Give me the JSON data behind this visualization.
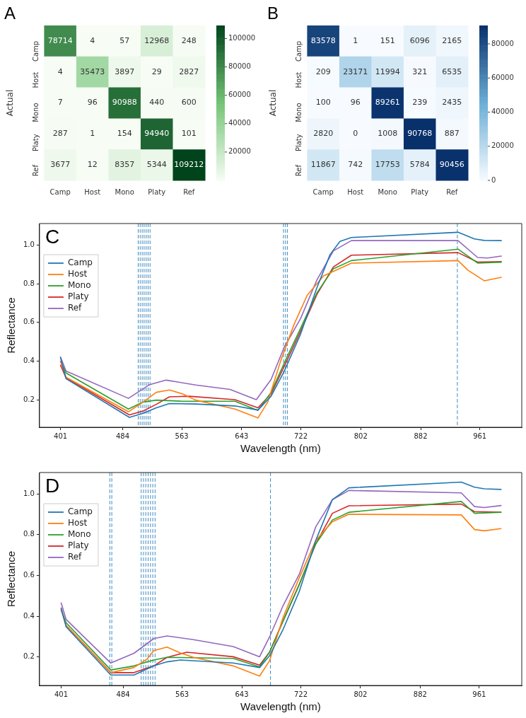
{
  "chart_data": [
    {
      "type": "heatmap",
      "title": "A",
      "ylabel": "Actual",
      "categories": [
        "Camp",
        "Host",
        "Mono",
        "Platy",
        "Ref"
      ],
      "y_categories": [
        "Camp",
        "Host",
        "Mono",
        "Platy",
        "Ref"
      ],
      "cells": [
        [
          78714,
          4,
          57,
          12968,
          248
        ],
        [
          4,
          35473,
          3897,
          29,
          2827
        ],
        [
          7,
          96,
          90988,
          440,
          600
        ],
        [
          287,
          1,
          154,
          94940,
          101
        ],
        [
          3677,
          12,
          8357,
          5344,
          109212
        ]
      ],
      "data_labels": true,
      "clim": [
        1,
        109212
      ],
      "cticks": [
        20000,
        40000,
        60000,
        80000,
        100000
      ],
      "colors": [
        "#f7fcf5",
        "#74c476",
        "#00441b"
      ]
    },
    {
      "type": "heatmap",
      "title": "B",
      "ylabel": "Actual",
      "categories": [
        "Camp",
        "Host",
        "Mono",
        "Platy",
        "Ref"
      ],
      "y_categories": [
        "Camp",
        "Host",
        "Mono",
        "Platy",
        "Ref"
      ],
      "cells": [
        [
          83578,
          1,
          151,
          6096,
          2165
        ],
        [
          209,
          23171,
          11994,
          321,
          6535
        ],
        [
          100,
          96,
          89261,
          239,
          2435
        ],
        [
          2820,
          0,
          1008,
          90768,
          887
        ],
        [
          11867,
          742,
          17753,
          5784,
          90456
        ]
      ],
      "data_labels": true,
      "clim": [
        0,
        90768
      ],
      "cticks": [
        0,
        20000,
        40000,
        60000,
        80000
      ],
      "colors": [
        "#f7fbff",
        "#6baed6",
        "#08306b"
      ]
    },
    {
      "type": "line",
      "title": "C",
      "xlabel": "Wavelength (nm)",
      "ylabel": "Reflectance",
      "xlim": [
        373,
        1017
      ],
      "ylim": [
        0.06,
        1.11
      ],
      "xticks": [
        401,
        484,
        563,
        643,
        722,
        802,
        882,
        961
      ],
      "yticks": [
        0.2,
        0.4,
        0.6,
        0.8,
        {
          "value": 1.0,
          "label": "1.0"
        }
      ],
      "legend": "top left",
      "series": [
        {
          "name": "Camp",
          "color": "#1f77b4",
          "x": [
            401,
            408.4,
            493,
            511.4,
            528.9,
            546.4,
            581.5,
            634,
            664.7,
            682.2,
            699.7,
            721.6,
            743.5,
            761,
            774.2,
            789.5,
            931.9,
            953.8,
            966.9,
            989.7
          ],
          "values": [
            0.42,
            0.31,
            0.111,
            0.132,
            0.16,
            0.182,
            0.18,
            0.17,
            0.149,
            0.22,
            0.348,
            0.54,
            0.78,
            0.95,
            1.018,
            1.038,
            1.065,
            1.031,
            1.023,
            1.022
          ]
        },
        {
          "name": "Host",
          "color": "#ff7f0e",
          "x": [
            401,
            408.4,
            491.7,
            511.4,
            528.9,
            546.4,
            564,
            581.5,
            634,
            664.7,
            677.8,
            695.3,
            712.9,
            730.4,
            752.3,
            789.5,
            931.9,
            945,
            966.9,
            989.7
          ],
          "values": [
            0.4,
            0.318,
            0.14,
            0.19,
            0.24,
            0.252,
            0.232,
            0.2,
            0.154,
            0.108,
            0.19,
            0.405,
            0.59,
            0.74,
            0.84,
            0.906,
            0.919,
            0.87,
            0.815,
            0.833
          ]
        },
        {
          "name": "Mono",
          "color": "#2ca02c",
          "x": [
            401,
            408.4,
            491.7,
            511.4,
            528.9,
            564,
            634,
            664.7,
            682.2,
            699.7,
            721.6,
            743.5,
            765.4,
            789.5,
            931.9,
            958.1,
            989.7
          ],
          "values": [
            0.4,
            0.34,
            0.154,
            0.19,
            0.2,
            0.194,
            0.194,
            0.147,
            0.24,
            0.39,
            0.57,
            0.753,
            0.877,
            0.919,
            0.978,
            0.906,
            0.911
          ]
        },
        {
          "name": "Platy",
          "color": "#d62728",
          "x": [
            401,
            408.4,
            493,
            511.4,
            528.9,
            546.4,
            572.7,
            634,
            664.7,
            682.2,
            699.7,
            721.6,
            743.5,
            765.4,
            789.5,
            931.9,
            958.1,
            989.7
          ],
          "values": [
            0.38,
            0.315,
            0.124,
            0.144,
            0.178,
            0.217,
            0.22,
            0.202,
            0.16,
            0.232,
            0.373,
            0.555,
            0.745,
            0.886,
            0.947,
            0.96,
            0.911,
            0.914
          ]
        },
        {
          "name": "Ref",
          "color": "#9467bd",
          "x": [
            401,
            408.4,
            491.7,
            520.1,
            542,
            581.5,
            627.4,
            662.5,
            682.2,
            699.7,
            721.6,
            743.5,
            765.4,
            789.5,
            931.9,
            958.1,
            971.3,
            989.7
          ],
          "values": [
            0.422,
            0.35,
            0.209,
            0.28,
            0.303,
            0.278,
            0.255,
            0.202,
            0.306,
            0.472,
            0.62,
            0.82,
            0.969,
            1.022,
            1.022,
            0.935,
            0.932,
            0.942
          ]
        }
      ],
      "ref_lines": [
        {
          "axis": "x",
          "value": 504.8,
          "color": "#1f77b4",
          "line_style": "dashed"
        },
        {
          "axis": "x",
          "value": 507.4,
          "color": "#1f77b4",
          "line_style": "dashed"
        },
        {
          "axis": "x",
          "value": 510.1,
          "color": "#1f77b4",
          "line_style": "dashed"
        },
        {
          "axis": "x",
          "value": 512.7,
          "color": "#1f77b4",
          "line_style": "dashed"
        },
        {
          "axis": "x",
          "value": 515.4,
          "color": "#1f77b4",
          "line_style": "dashed"
        },
        {
          "axis": "x",
          "value": 518,
          "color": "#1f77b4",
          "line_style": "dashed"
        },
        {
          "axis": "x",
          "value": 520.6,
          "color": "#1f77b4",
          "line_style": "dashed"
        },
        {
          "axis": "x",
          "value": 698.8,
          "color": "#1f77b4",
          "line_style": "dashed"
        },
        {
          "axis": "x",
          "value": 701.5,
          "color": "#1f77b4",
          "line_style": "dashed"
        },
        {
          "axis": "x",
          "value": 704.1,
          "color": "#1f77b4",
          "line_style": "dashed"
        },
        {
          "axis": "x",
          "value": 931,
          "color": "#1f77b4",
          "line_style": "dashed"
        }
      ]
    },
    {
      "type": "line",
      "title": "D",
      "xlabel": "Wavelength (nm)",
      "ylabel": "Reflectance",
      "xlim": [
        372,
        1018
      ],
      "ylim": [
        0.06,
        1.105
      ],
      "xticks": [
        401,
        484,
        563,
        643,
        722,
        802,
        882,
        961
      ],
      "yticks": [
        0.2,
        0.4,
        0.6,
        0.8,
        {
          "value": 1.0,
          "label": "1.0"
        }
      ],
      "legend": "top left",
      "series": [
        {
          "name": "Camp",
          "color": "#1f77b4",
          "x": [
            401,
            407.6,
            467.5,
            498.5,
            525,
            542.8,
            560.5,
            631.4,
            666.8,
            680.1,
            697.8,
            720,
            742.1,
            764.3,
            786.4,
            937,
            954.8,
            968,
            990.2
          ],
          "values": [
            0.44,
            0.348,
            0.111,
            0.111,
            0.156,
            0.176,
            0.185,
            0.17,
            0.148,
            0.206,
            0.331,
            0.522,
            0.772,
            0.972,
            1.03,
            1.058,
            1.033,
            1.025,
            1.022
          ]
        },
        {
          "name": "Host",
          "color": "#ff7f0e",
          "x": [
            401,
            407.6,
            467.5,
            498.5,
            516.2,
            525,
            542.8,
            560.5,
            578.2,
            631.4,
            666.8,
            680.1,
            697.8,
            720,
            742.1,
            764.3,
            786.4,
            937,
            954.8,
            968,
            990.2
          ],
          "values": [
            0.43,
            0.355,
            0.123,
            0.148,
            0.19,
            0.231,
            0.248,
            0.22,
            0.198,
            0.156,
            0.106,
            0.181,
            0.389,
            0.589,
            0.772,
            0.864,
            0.9,
            0.897,
            0.825,
            0.819,
            0.83
          ]
        },
        {
          "name": "Mono",
          "color": "#2ca02c",
          "x": [
            401,
            407.6,
            467.5,
            498.5,
            525,
            542.8,
            631.4,
            666.8,
            680.1,
            697.8,
            720,
            742.1,
            764.3,
            786.4,
            937,
            954.8,
            990.2
          ],
          "values": [
            0.43,
            0.368,
            0.136,
            0.156,
            0.185,
            0.198,
            0.193,
            0.151,
            0.223,
            0.373,
            0.556,
            0.755,
            0.872,
            0.91,
            0.963,
            0.905,
            0.91
          ]
        },
        {
          "name": "Platy",
          "color": "#d62728",
          "x": [
            401,
            407.6,
            467.5,
            498.5,
            525,
            542.8,
            569.4,
            631.4,
            666.8,
            680.1,
            697.8,
            720,
            742.1,
            764.3,
            786.4,
            937,
            954.8,
            990.2
          ],
          "values": [
            0.435,
            0.355,
            0.123,
            0.123,
            0.156,
            0.198,
            0.223,
            0.201,
            0.16,
            0.223,
            0.373,
            0.556,
            0.755,
            0.905,
            0.942,
            0.95,
            0.913,
            0.91
          ]
        },
        {
          "name": "Ref",
          "color": "#9467bd",
          "x": [
            401,
            407.6,
            467.5,
            498.5,
            525,
            542.8,
            578.2,
            631.4,
            666.8,
            680.1,
            697.8,
            720,
            742.1,
            764.3,
            786.4,
            937,
            954.8,
            968,
            990.2
          ],
          "values": [
            0.465,
            0.384,
            0.17,
            0.218,
            0.29,
            0.303,
            0.285,
            0.251,
            0.201,
            0.298,
            0.448,
            0.606,
            0.839,
            0.972,
            1.017,
            1.005,
            0.938,
            0.933,
            0.943
          ]
        }
      ],
      "ref_lines": [
        {
          "axis": "x",
          "value": 466.1,
          "color": "#1f77b4",
          "line_style": "dashed"
        },
        {
          "axis": "x",
          "value": 468.8,
          "color": "#1f77b4",
          "line_style": "dashed"
        },
        {
          "axis": "x",
          "value": 508.2,
          "color": "#1f77b4",
          "line_style": "dashed"
        },
        {
          "axis": "x",
          "value": 511.3,
          "color": "#1f77b4",
          "line_style": "dashed"
        },
        {
          "axis": "x",
          "value": 514.4,
          "color": "#1f77b4",
          "line_style": "dashed"
        },
        {
          "axis": "x",
          "value": 517.5,
          "color": "#1f77b4",
          "line_style": "dashed"
        },
        {
          "axis": "x",
          "value": 520.6,
          "color": "#1f77b4",
          "line_style": "dashed"
        },
        {
          "axis": "x",
          "value": 523.7,
          "color": "#1f77b4",
          "line_style": "dashed"
        },
        {
          "axis": "x",
          "value": 526.8,
          "color": "#1f77b4",
          "line_style": "dashed"
        },
        {
          "axis": "x",
          "value": 681.4,
          "color": "#1f77b4",
          "line_style": "dashed"
        }
      ]
    }
  ]
}
